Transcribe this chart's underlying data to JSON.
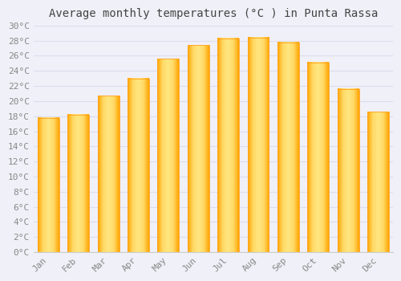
{
  "months": [
    "Jan",
    "Feb",
    "Mar",
    "Apr",
    "May",
    "Jun",
    "Jul",
    "Aug",
    "Sep",
    "Oct",
    "Nov",
    "Dec"
  ],
  "values": [
    17.8,
    18.2,
    20.7,
    23.0,
    25.6,
    27.4,
    28.3,
    28.4,
    27.8,
    25.1,
    21.6,
    18.6
  ],
  "bar_color_center": "#FFD966",
  "bar_color_edge": "#FFA500",
  "bar_color_main": "#FFC020",
  "background_color": "#F0F0F8",
  "plot_bg_color": "#F0F0F8",
  "grid_color": "#DDDDEE",
  "title": "Average monthly temperatures (°C ) in Punta Rassa",
  "title_fontsize": 10,
  "title_color": "#444444",
  "tick_label_color": "#888888",
  "ylim": [
    0,
    30
  ],
  "ytick_step": 2
}
